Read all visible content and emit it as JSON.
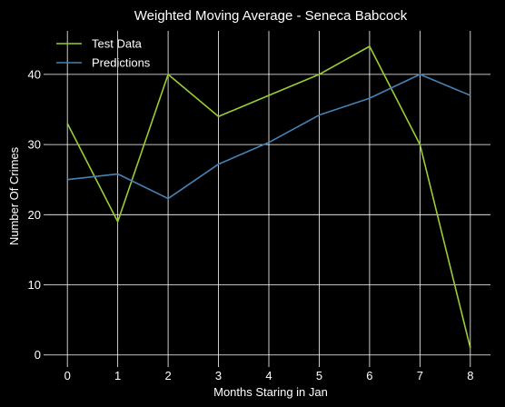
{
  "chart_data": {
    "type": "line",
    "title": "Weighted Moving Average - Seneca Babcock",
    "xlabel": "Months Staring in Jan",
    "ylabel": "Number Of Crimes",
    "x": [
      0,
      1,
      2,
      3,
      4,
      5,
      6,
      7,
      8
    ],
    "xlim": [
      -0.4,
      8.4
    ],
    "ylim": [
      -1.2,
      46.2
    ],
    "xticks": [
      0,
      1,
      2,
      3,
      4,
      5,
      6,
      7,
      8
    ],
    "yticks": [
      0,
      10,
      20,
      30,
      40
    ],
    "grid": true,
    "legend_position": "top-left",
    "background": "#000000",
    "series": [
      {
        "name": "Test Data",
        "color": "#9acd32",
        "values": [
          33,
          19,
          40,
          34,
          37,
          40,
          44,
          30,
          1
        ]
      },
      {
        "name": "Predictions",
        "color": "#4682b4",
        "values": [
          25,
          25.8,
          22.3,
          27.2,
          30.3,
          34.2,
          36.6,
          40,
          37
        ]
      }
    ]
  }
}
